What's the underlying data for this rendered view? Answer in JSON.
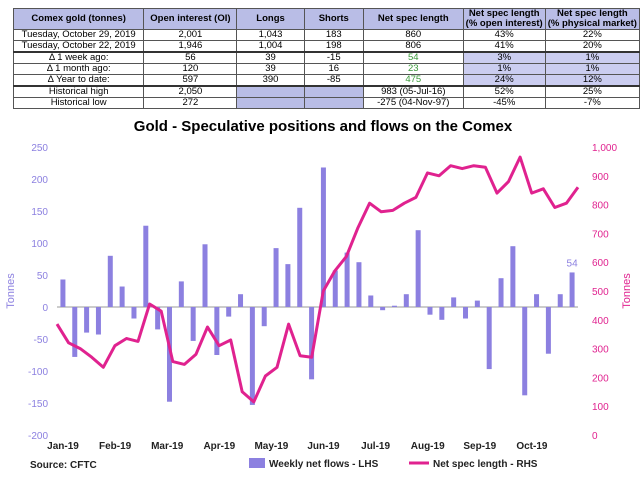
{
  "table": {
    "headers": [
      "Comex gold (tonnes)",
      "Open interest (OI)",
      "Longs",
      "Shorts",
      "Net spec length",
      "Net spec length\n(% open interest)",
      "Net spec length\n(% physical market)"
    ],
    "rows": [
      {
        "label": "Tuesday, October 29, 2019",
        "cells": [
          "2,001",
          "1,043",
          "183",
          "860",
          "43%",
          "22%"
        ]
      },
      {
        "label": "Tuesday, October 22, 2019",
        "cells": [
          "1,946",
          "1,004",
          "198",
          "806",
          "41%",
          "20%"
        ]
      },
      {
        "label": "Δ 1 week ago:",
        "cells": [
          "56",
          "39",
          "-15",
          "54",
          "3%",
          "1%"
        ]
      },
      {
        "label": "Δ 1 month ago:",
        "cells": [
          "120",
          "39",
          "16",
          "23",
          "1%",
          "1%"
        ]
      },
      {
        "label": "Δ Year to date:",
        "cells": [
          "597",
          "390",
          "-85",
          "475",
          "24%",
          "12%"
        ]
      },
      {
        "label": "Historical high",
        "cells": [
          "2,050",
          "",
          "",
          "983  (05-Jul-16)",
          "52%",
          "25%"
        ]
      },
      {
        "label": "Historical low",
        "cells": [
          "272",
          "",
          "",
          "-275  (04-Nov-97)",
          "-45%",
          "-7%"
        ]
      }
    ]
  },
  "colors": {
    "bars": "#8c80e0",
    "line": "#e0228f",
    "axis_left": "#8c80e0",
    "axis_right": "#e0228f",
    "header_bg": "#b9bde6"
  },
  "chart_data": {
    "type": "bar+line",
    "title": "Gold - Speculative positions and flows on the Comex",
    "ylabel": "Tonnes",
    "y2label": "Tonnes",
    "ylim": [
      -200,
      250
    ],
    "y2lim": [
      0,
      1000
    ],
    "yticks": [
      -200,
      -150,
      -100,
      -50,
      0,
      50,
      100,
      150,
      200,
      250
    ],
    "y2ticks": [
      "0",
      "100",
      "200",
      "300",
      "400",
      "500",
      "600",
      "700",
      "800",
      "900",
      "1,000"
    ],
    "xticks": [
      "Jan-19",
      "Feb-19",
      "Mar-19",
      "Apr-19",
      "May-19",
      "Jun-19",
      "Jul-19",
      "Aug-19",
      "Sep-19",
      "Oct-19"
    ],
    "series": [
      {
        "name": "Weekly net flows - LHS",
        "type": "bar",
        "values": [
          43,
          -78,
          -40,
          -43,
          80,
          32,
          -18,
          127,
          -35,
          -148,
          40,
          -53,
          98,
          -75,
          -15,
          20,
          -153,
          -30,
          92,
          67,
          155,
          -113,
          218,
          57,
          85,
          70,
          18,
          -5,
          2,
          20,
          120,
          -12,
          -20,
          15,
          -18,
          10,
          -97,
          45,
          95,
          -138,
          20,
          -73,
          20,
          54
        ]
      },
      {
        "name": "Net spec length - RHS",
        "type": "line",
        "values": [
          385,
          320,
          300,
          270,
          235,
          310,
          335,
          325,
          455,
          430,
          255,
          245,
          280,
          375,
          310,
          330,
          150,
          115,
          205,
          235,
          385,
          275,
          270,
          500,
          570,
          620,
          720,
          805,
          775,
          780,
          805,
          825,
          910,
          900,
          935,
          925,
          935,
          930,
          840,
          880,
          965,
          840,
          855,
          790,
          805,
          860
        ]
      }
    ],
    "last_label": "54",
    "legend_position": "bottom"
  },
  "source": "Source: CFTC"
}
